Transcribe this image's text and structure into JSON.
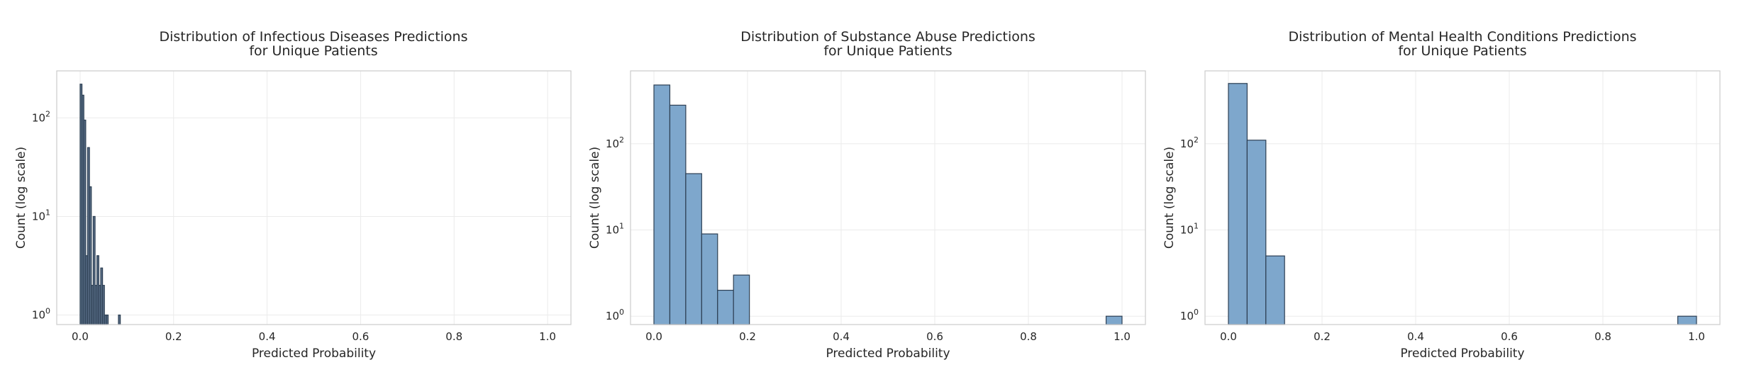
{
  "chart_data": [
    {
      "type": "bar",
      "title_lines": [
        "Distribution of Infectious Diseases Predictions",
        "for Unique Patients"
      ],
      "xlabel": "Predicted Probability",
      "ylabel": "Count (log scale)",
      "xlim": [
        -0.05,
        1.05
      ],
      "ylim": [
        0.8,
        300
      ],
      "yscale": "log",
      "xticks": [
        0.0,
        0.2,
        0.4,
        0.6,
        0.8,
        1.0
      ],
      "xtick_labels": [
        "0.0",
        "0.2",
        "0.4",
        "0.6",
        "0.8",
        "1.0"
      ],
      "yticks": [
        1,
        10,
        100
      ],
      "ytick_labels": [
        {
          "base": "10",
          "exp": "0"
        },
        {
          "base": "10",
          "exp": "1"
        },
        {
          "base": "10",
          "exp": "2"
        }
      ],
      "grid": true,
      "bar_color": "#5a6f88",
      "bar_edge": "#2d3f53",
      "bins": [
        {
          "x0": 0.0,
          "x1": 0.004,
          "count": 220
        },
        {
          "x0": 0.004,
          "x1": 0.008,
          "count": 170
        },
        {
          "x0": 0.008,
          "x1": 0.012,
          "count": 95
        },
        {
          "x0": 0.012,
          "x1": 0.016,
          "count": 4
        },
        {
          "x0": 0.016,
          "x1": 0.02,
          "count": 50
        },
        {
          "x0": 0.02,
          "x1": 0.024,
          "count": 20
        },
        {
          "x0": 0.024,
          "x1": 0.028,
          "count": 2
        },
        {
          "x0": 0.028,
          "x1": 0.032,
          "count": 10
        },
        {
          "x0": 0.032,
          "x1": 0.036,
          "count": 2
        },
        {
          "x0": 0.036,
          "x1": 0.04,
          "count": 4
        },
        {
          "x0": 0.04,
          "x1": 0.044,
          "count": 2
        },
        {
          "x0": 0.044,
          "x1": 0.048,
          "count": 3
        },
        {
          "x0": 0.048,
          "x1": 0.052,
          "count": 2
        },
        {
          "x0": 0.052,
          "x1": 0.056,
          "count": 1
        },
        {
          "x0": 0.056,
          "x1": 0.06,
          "count": 1
        },
        {
          "x0": 0.082,
          "x1": 0.086,
          "count": 1
        }
      ]
    },
    {
      "type": "bar",
      "title_lines": [
        "Distribution of Substance Abuse Predictions",
        "for Unique Patients"
      ],
      "xlabel": "Predicted Probability",
      "ylabel": "Count (log scale)",
      "xlim": [
        -0.05,
        1.05
      ],
      "ylim": [
        0.8,
        700
      ],
      "yscale": "log",
      "xticks": [
        0.0,
        0.2,
        0.4,
        0.6,
        0.8,
        1.0
      ],
      "xtick_labels": [
        "0.0",
        "0.2",
        "0.4",
        "0.6",
        "0.8",
        "1.0"
      ],
      "yticks": [
        1,
        10,
        100
      ],
      "ytick_labels": [
        {
          "base": "10",
          "exp": "0"
        },
        {
          "base": "10",
          "exp": "1"
        },
        {
          "base": "10",
          "exp": "2"
        }
      ],
      "grid": true,
      "bar_color": "#7ea7cc",
      "bar_edge": "#2d3f53",
      "bins": [
        {
          "x0": 0.0,
          "x1": 0.034,
          "count": 480
        },
        {
          "x0": 0.034,
          "x1": 0.068,
          "count": 280
        },
        {
          "x0": 0.068,
          "x1": 0.102,
          "count": 45
        },
        {
          "x0": 0.102,
          "x1": 0.136,
          "count": 9
        },
        {
          "x0": 0.136,
          "x1": 0.17,
          "count": 2
        },
        {
          "x0": 0.17,
          "x1": 0.204,
          "count": 3
        },
        {
          "x0": 0.966,
          "x1": 1.0,
          "count": 1
        }
      ]
    },
    {
      "type": "bar",
      "title_lines": [
        "Distribution of Mental Health Conditions Predictions",
        "for Unique Patients"
      ],
      "xlabel": "Predicted Probability",
      "ylabel": "Count (log scale)",
      "xlim": [
        -0.05,
        1.05
      ],
      "ylim": [
        0.8,
        700
      ],
      "yscale": "log",
      "xticks": [
        0.0,
        0.2,
        0.4,
        0.6,
        0.8,
        1.0
      ],
      "xtick_labels": [
        "0.0",
        "0.2",
        "0.4",
        "0.6",
        "0.8",
        "1.0"
      ],
      "yticks": [
        1,
        10,
        100
      ],
      "ytick_labels": [
        {
          "base": "10",
          "exp": "0"
        },
        {
          "base": "10",
          "exp": "1"
        },
        {
          "base": "10",
          "exp": "2"
        }
      ],
      "grid": true,
      "bar_color": "#7ea7cc",
      "bar_edge": "#2d3f53",
      "bins": [
        {
          "x0": 0.0,
          "x1": 0.04,
          "count": 500
        },
        {
          "x0": 0.04,
          "x1": 0.08,
          "count": 110
        },
        {
          "x0": 0.08,
          "x1": 0.12,
          "count": 5
        },
        {
          "x0": 0.96,
          "x1": 1.0,
          "count": 1
        }
      ]
    }
  ]
}
